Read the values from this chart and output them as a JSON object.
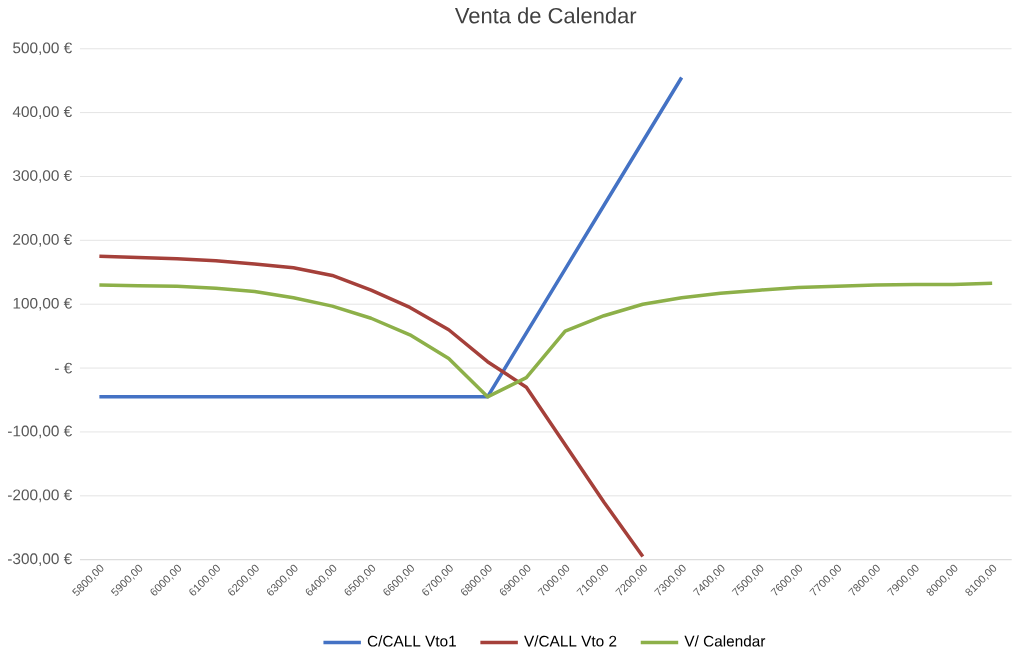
{
  "chart_data": {
    "type": "line",
    "title": "Venta de Calendar",
    "categories": [
      "5800,00",
      "5900,00",
      "6000,00",
      "6100,00",
      "6200,00",
      "6300,00",
      "6400,00",
      "6500,00",
      "6600,00",
      "6700,00",
      "6800,00",
      "6900,00",
      "7000,00",
      "7100,00",
      "7200,00",
      "7300,00",
      "7400,00",
      "7500,00",
      "7600,00",
      "7700,00",
      "7800,00",
      "7900,00",
      "8000,00",
      "8100,00"
    ],
    "series": [
      {
        "name": "C/CALL Vto1",
        "color": "#4472c4",
        "values": [
          -45,
          -45,
          -45,
          -45,
          -45,
          -45,
          -45,
          -45,
          -45,
          -45,
          -45,
          55,
          155,
          255,
          355,
          455,
          null,
          null,
          null,
          null,
          null,
          null,
          null,
          null
        ]
      },
      {
        "name": "V/CALL Vto 2",
        "color": "#a5403a",
        "values": [
          175,
          173,
          171,
          168,
          163,
          157,
          145,
          122,
          95,
          60,
          10,
          -30,
          -120,
          -210,
          -295,
          null,
          null,
          null,
          null,
          null,
          null,
          null,
          null,
          null
        ]
      },
      {
        "name": "V/ Calendar",
        "color": "#8db049",
        "values": [
          130,
          129,
          128,
          125,
          120,
          110,
          97,
          78,
          52,
          15,
          -45,
          -15,
          58,
          82,
          100,
          110,
          117,
          122,
          126,
          128,
          130,
          131,
          131,
          133
        ]
      }
    ],
    "ylim": [
      -300,
      500
    ],
    "yticks": [
      {
        "value": -300,
        "label": "-300,00 €"
      },
      {
        "value": -200,
        "label": "-200,00 €"
      },
      {
        "value": -100,
        "label": "-100,00 €"
      },
      {
        "value": 0,
        "label": "-   €"
      },
      {
        "value": 100,
        "label": "100,00 €"
      },
      {
        "value": 200,
        "label": "200,00 €"
      },
      {
        "value": 300,
        "label": "300,00 €"
      },
      {
        "value": 400,
        "label": "400,00 €"
      },
      {
        "value": 500,
        "label": "500,00 €"
      }
    ],
    "grid": "y",
    "legend": "bottom",
    "marker": "none",
    "line_style": "solid"
  }
}
